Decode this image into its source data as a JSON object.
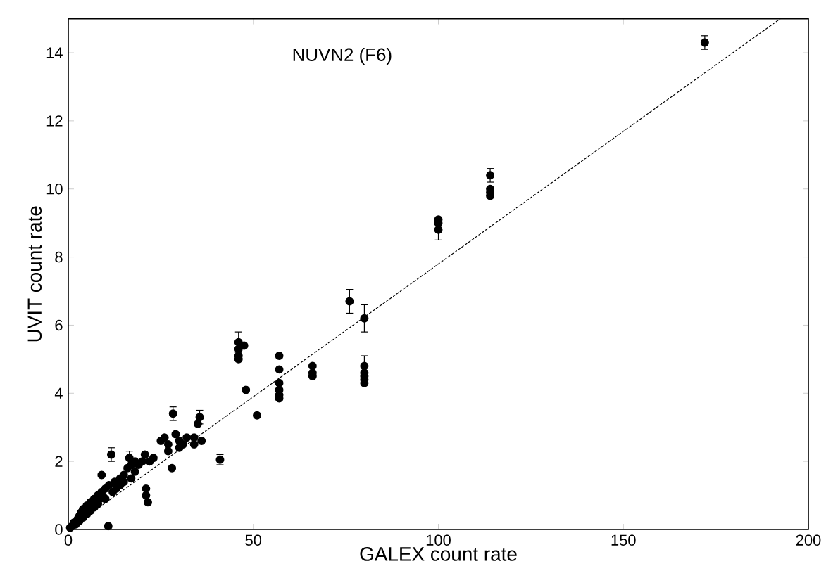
{
  "chart_data": {
    "type": "scatter",
    "title": "NUVN2 (F6)",
    "xlabel": "GALEX count rate",
    "ylabel": "UVIT count rate",
    "xlim": [
      0,
      200
    ],
    "ylim": [
      0,
      15
    ],
    "xticks": [
      0,
      50,
      100,
      150,
      200
    ],
    "yticks": [
      0,
      2,
      4,
      6,
      8,
      10,
      12,
      14
    ],
    "series": [
      {
        "marker": "circle",
        "color": "#000000",
        "x": [
          0.5,
          1,
          1.5,
          2,
          2.5,
          3,
          3,
          3.5,
          4,
          4,
          5,
          5,
          6,
          6,
          7,
          7,
          8,
          8,
          8.5,
          9,
          9,
          9.5,
          10,
          10,
          10.8,
          11,
          11.6,
          12,
          12.5,
          13,
          14,
          14,
          15,
          15,
          16,
          16.5,
          17,
          17,
          18,
          18,
          19,
          20,
          20.7,
          21,
          21.5,
          21,
          22,
          23,
          25,
          26,
          27,
          27,
          28,
          28.3,
          29,
          30,
          30,
          31,
          32,
          34,
          34,
          35.5,
          35,
          36,
          41,
          46,
          46,
          46,
          46,
          47.5,
          48,
          51,
          57,
          57,
          57,
          57,
          57,
          57,
          66,
          66,
          66,
          76,
          80,
          80,
          80,
          80,
          80,
          80,
          100,
          100,
          100,
          114,
          114,
          114,
          114,
          172
        ],
        "values": [
          0.05,
          0.1,
          0.2,
          0.15,
          0.3,
          0.25,
          0.4,
          0.5,
          0.35,
          0.6,
          0.7,
          0.45,
          0.8,
          0.55,
          0.9,
          0.65,
          1.0,
          0.75,
          0.9,
          1.1,
          1.6,
          0.95,
          1.2,
          0.9,
          0.1,
          1.3,
          2.2,
          1.1,
          1.4,
          1.2,
          1.5,
          1.3,
          1.6,
          1.4,
          1.8,
          2.1,
          1.5,
          1.9,
          1.7,
          2.0,
          1.9,
          2.0,
          2.2,
          1.2,
          0.8,
          1.0,
          2.0,
          2.1,
          2.6,
          2.7,
          2.5,
          2.3,
          1.8,
          3.4,
          2.8,
          2.6,
          2.4,
          2.5,
          2.7,
          2.7,
          2.5,
          3.3,
          3.1,
          2.6,
          2.05,
          5.5,
          5.3,
          5.1,
          5.0,
          5.4,
          4.1,
          3.35,
          5.1,
          4.7,
          4.3,
          4.1,
          3.95,
          3.85,
          4.8,
          4.6,
          4.5,
          6.7,
          6.2,
          4.8,
          4.6,
          4.5,
          4.4,
          4.3,
          9.1,
          9.0,
          8.8,
          10.4,
          10.0,
          9.9,
          9.8,
          14.3
        ],
        "errors": [
          null,
          null,
          null,
          null,
          null,
          null,
          null,
          null,
          null,
          null,
          null,
          null,
          null,
          null,
          null,
          null,
          null,
          null,
          null,
          null,
          null,
          null,
          null,
          null,
          null,
          null,
          0.2,
          null,
          null,
          null,
          null,
          null,
          null,
          null,
          null,
          0.2,
          null,
          null,
          null,
          null,
          null,
          null,
          null,
          null,
          null,
          null,
          null,
          null,
          null,
          null,
          null,
          null,
          null,
          0.2,
          null,
          null,
          null,
          null,
          null,
          null,
          null,
          0.2,
          null,
          null,
          0.15,
          0.3,
          null,
          null,
          null,
          null,
          null,
          null,
          null,
          null,
          null,
          null,
          null,
          null,
          null,
          null,
          null,
          0.35,
          0.4,
          0.3,
          null,
          null,
          null,
          null,
          null,
          null,
          0.3,
          0.2,
          null,
          null,
          null,
          0.2
        ]
      },
      {
        "type": "line",
        "marker": "none",
        "color": "#000000",
        "line_style": "dashed",
        "x": [
          0,
          192.4
        ],
        "values": [
          0,
          15
        ]
      }
    ]
  }
}
